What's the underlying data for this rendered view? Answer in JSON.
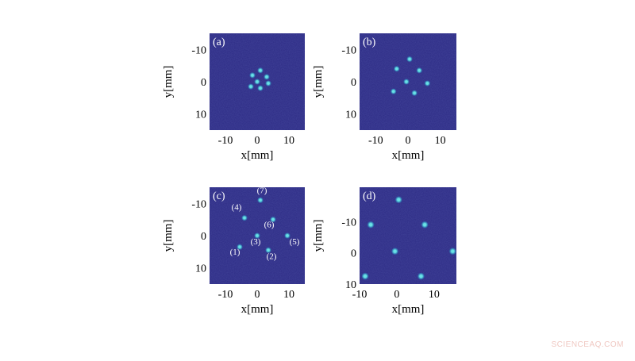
{
  "watermark": "SCIENCEAQ.COM",
  "colors": {
    "background": "#2c2a84",
    "spot_core": "#67e3e6",
    "spot_glow": "#2f7fb8",
    "label": "#ffffff",
    "axis_text": "#000000"
  },
  "chart_data": [
    {
      "type": "scatter",
      "panel_label": "(a)",
      "xlabel": "x[mm]",
      "ylabel": "y[mm]",
      "xlim": [
        -15,
        15
      ],
      "ylim": [
        -15,
        15
      ],
      "y_inverted": true,
      "xticks": [
        -10,
        0,
        10
      ],
      "yticks": [
        -10,
        0,
        10
      ],
      "points": [
        {
          "x": 1,
          "y": -3.5
        },
        {
          "x": -1.5,
          "y": -2
        },
        {
          "x": 3,
          "y": -1.5
        },
        {
          "x": 0,
          "y": 0
        },
        {
          "x": 3.5,
          "y": 0.5
        },
        {
          "x": -2,
          "y": 1.5
        },
        {
          "x": 1,
          "y": 2
        }
      ]
    },
    {
      "type": "scatter",
      "panel_label": "(b)",
      "xlabel": "x[mm]",
      "ylabel": "y[mm]",
      "xlim": [
        -15,
        15
      ],
      "ylim": [
        -15,
        15
      ],
      "y_inverted": true,
      "xticks": [
        -10,
        0,
        10
      ],
      "yticks": [
        -10,
        0,
        10
      ],
      "points": [
        {
          "x": 0.5,
          "y": -7
        },
        {
          "x": -3.5,
          "y": -4
        },
        {
          "x": 3.5,
          "y": -3.5
        },
        {
          "x": -0.5,
          "y": 0
        },
        {
          "x": 6,
          "y": 0.5
        },
        {
          "x": -4.5,
          "y": 3
        },
        {
          "x": 2,
          "y": 3.5
        }
      ]
    },
    {
      "type": "scatter",
      "panel_label": "(c)",
      "xlabel": "x[mm]",
      "ylabel": "y[mm]",
      "xlim": [
        -15,
        15
      ],
      "ylim": [
        -15,
        15
      ],
      "y_inverted": true,
      "xticks": [
        -10,
        0,
        10
      ],
      "yticks": [
        -10,
        0,
        10
      ],
      "points": [
        {
          "x": -5.5,
          "y": 3.5,
          "label": "(1)"
        },
        {
          "x": 3.5,
          "y": 4.5,
          "label": "(2)"
        },
        {
          "x": 0,
          "y": 0,
          "label": "(3)"
        },
        {
          "x": -4,
          "y": -5.5,
          "label": "(4)"
        },
        {
          "x": 9.5,
          "y": 0,
          "label": "(5)"
        },
        {
          "x": 5,
          "y": -5,
          "label": "(6)"
        },
        {
          "x": 1,
          "y": -11,
          "label": "(7)"
        }
      ]
    },
    {
      "type": "scatter",
      "panel_label": "(d)",
      "xlabel": "x[mm]",
      "ylabel": "y[mm]",
      "xlim": [
        -10,
        16
      ],
      "ylim": [
        -21,
        10
      ],
      "y_inverted": true,
      "xticks": [
        -10,
        0,
        10
      ],
      "yticks": [
        -10,
        0,
        10
      ],
      "points": [
        {
          "x": 0.5,
          "y": -17
        },
        {
          "x": -7,
          "y": -9
        },
        {
          "x": 7.5,
          "y": -9
        },
        {
          "x": -0.5,
          "y": -0.5
        },
        {
          "x": 15,
          "y": -0.5
        },
        {
          "x": -8.5,
          "y": 7.5
        },
        {
          "x": 6.5,
          "y": 7.5
        }
      ]
    }
  ]
}
